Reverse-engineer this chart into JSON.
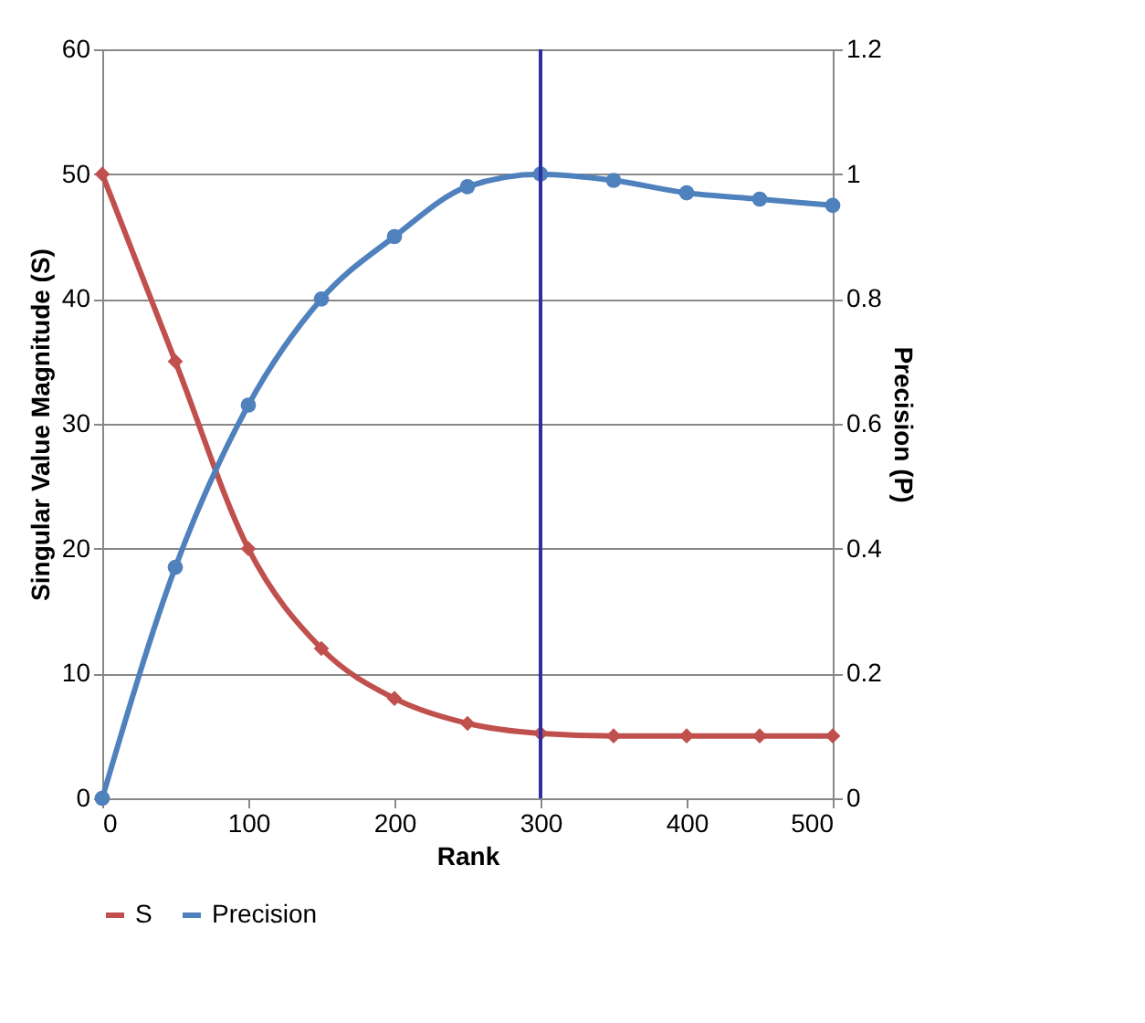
{
  "chart_data": {
    "type": "line",
    "xlabel": "Rank",
    "ylabel": "Singular Value Magnitude (S)",
    "y2label": "Precision (P)",
    "x": [
      0,
      50,
      100,
      150,
      200,
      250,
      300,
      350,
      400,
      450,
      500
    ],
    "series": [
      {
        "name": "S",
        "color": "#c0504d",
        "marker": "diamond",
        "values": [
          50,
          35,
          20,
          12,
          8,
          6,
          5.2,
          5,
          5,
          5,
          5
        ]
      },
      {
        "name": "Precision",
        "color": "#4f81bd",
        "marker": "circle",
        "axis": "y2",
        "values": [
          0,
          0.37,
          0.63,
          0.8,
          0.9,
          0.98,
          1.0,
          0.99,
          0.97,
          0.96,
          0.95
        ]
      }
    ],
    "xlim": [
      0,
      500
    ],
    "xticks": [
      0,
      100,
      200,
      300,
      400,
      500
    ],
    "ylim": [
      0,
      60
    ],
    "yticks": [
      0,
      10,
      20,
      30,
      40,
      50,
      60
    ],
    "y2lim": [
      0,
      1.2
    ],
    "y2ticks": [
      0,
      0.2,
      0.4,
      0.6,
      0.8,
      1,
      1.2
    ],
    "ref_lines": [
      {
        "axis": "x",
        "value": 300,
        "color": "#2e2ea0"
      }
    ],
    "grid": "y",
    "legend": "bottom",
    "line_style": "solid"
  }
}
